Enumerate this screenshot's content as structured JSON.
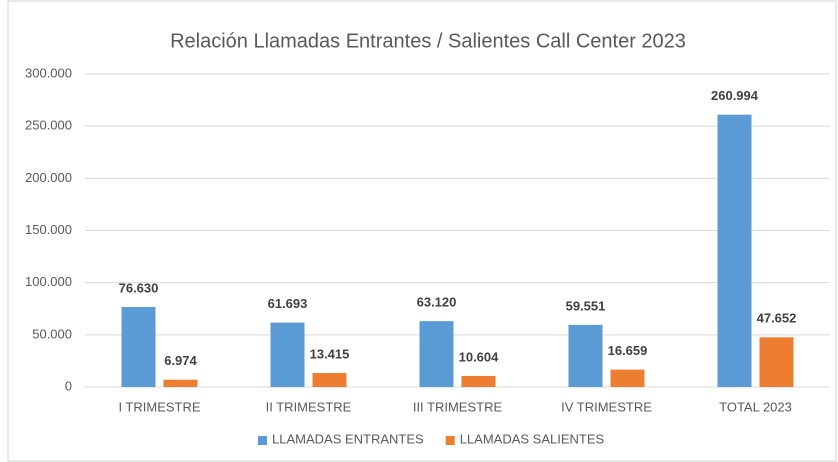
{
  "chart_data": {
    "type": "bar",
    "title": "Relación Llamadas Entrantes / Salientes Call Center 2023",
    "categories": [
      "I TRIMESTRE",
      "II TRIMESTRE",
      "III TRIMESTRE",
      "IV TRIMESTRE",
      "TOTAL 2023"
    ],
    "series": [
      {
        "name": "LLAMADAS ENTRANTES",
        "color": "#5b9bd5",
        "values": [
          76630,
          61693,
          63120,
          59551,
          260994
        ],
        "value_labels": [
          "76.630",
          "61.693",
          "63.120",
          "59.551",
          "260.994"
        ]
      },
      {
        "name": "LLAMADAS SALIENTES",
        "color": "#ed7d31",
        "values": [
          6974,
          13415,
          10604,
          16659,
          47652
        ],
        "value_labels": [
          "6.974",
          "13.415",
          "10.604",
          "16.659",
          "47.652"
        ]
      }
    ],
    "ylim": [
      0,
      300000
    ],
    "yticks": [
      0,
      {
        "value": 50000,
        "label": "50.000"
      },
      {
        "value": 100000,
        "label": "100.000"
      },
      {
        "value": 150000,
        "label": "150.000"
      },
      {
        "value": 200000,
        "label": "200.000"
      },
      {
        "value": 250000,
        "label": "250.000"
      },
      {
        "value": 300000,
        "label": "300.000"
      }
    ],
    "grid": true,
    "legend": "bottom"
  }
}
